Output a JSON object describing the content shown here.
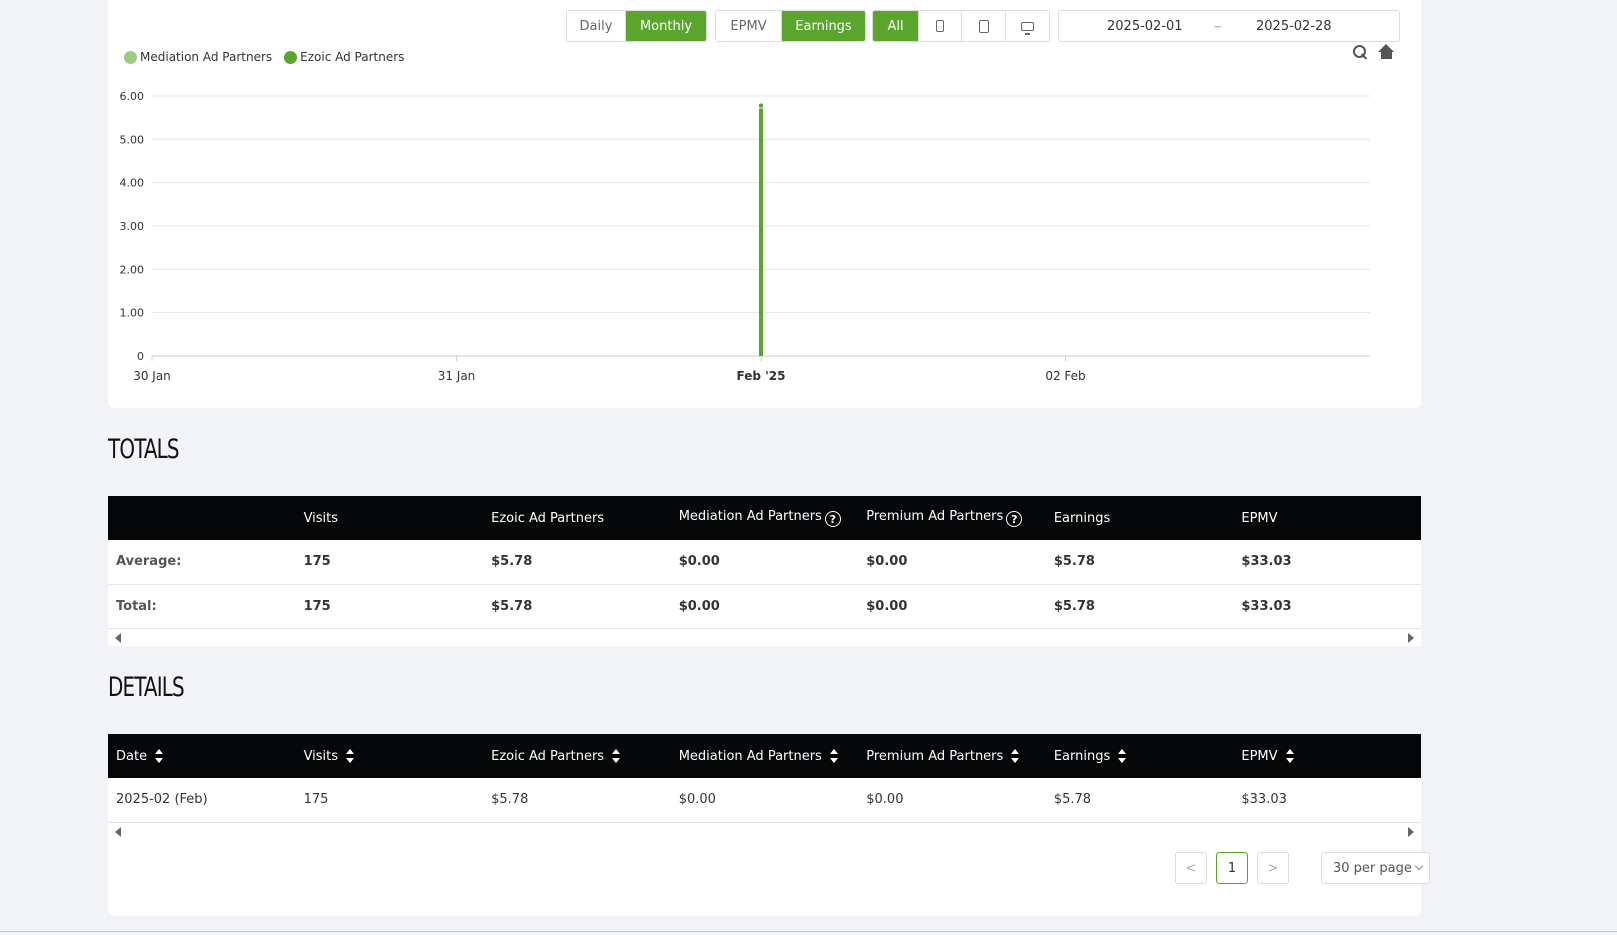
{
  "toolbar": {
    "period": {
      "daily": "Daily",
      "monthly": "Monthly",
      "active": "monthly"
    },
    "metric": {
      "epmv": "EPMV",
      "earnings": "Earnings",
      "active": "earnings"
    },
    "device": {
      "all": "All",
      "active": "all",
      "icons": [
        "mobile-phone-icon",
        "tablet-icon",
        "desktop-icon"
      ]
    },
    "date_range": {
      "start": "2025-02-01",
      "separator": "~",
      "end": "2025-02-28"
    },
    "tools": [
      "zoom-icon",
      "home-icon"
    ]
  },
  "legend": [
    {
      "label": "Mediation Ad Partners",
      "color": "#9dcc80"
    },
    {
      "label": "Ezoic Ad Partners",
      "color": "#5aa52b"
    }
  ],
  "chart_data": {
    "type": "bar",
    "x_ticks": [
      "30 Jan",
      "31 Jan",
      "Feb '25",
      "02 Feb"
    ],
    "y_ticks": [
      "0",
      "1.00",
      "2.00",
      "3.00",
      "4.00",
      "5.00",
      "6.00"
    ],
    "ylim": [
      0,
      6
    ],
    "series": [
      {
        "name": "Mediation Ad Partners",
        "color": "#9dcc80",
        "points": [
          {
            "x": "Feb '25",
            "value": 0.0
          }
        ]
      },
      {
        "name": "Ezoic Ad Partners",
        "color": "#5aa52b",
        "points": [
          {
            "x": "Feb '25",
            "value": 5.78
          }
        ]
      }
    ],
    "grid": true,
    "legend_position": "top-left"
  },
  "totals": {
    "title": "TOTALS",
    "columns": [
      "",
      "Visits",
      "Ezoic Ad Partners",
      "Mediation Ad Partners",
      "Premium Ad Partners",
      "Earnings",
      "EPMV"
    ],
    "help_icon_text": "?",
    "rows": [
      [
        "Average:",
        "175",
        "$5.78",
        "$0.00",
        "$0.00",
        "$5.78",
        "$33.03"
      ],
      [
        "Total:",
        "175",
        "$5.78",
        "$0.00",
        "$0.00",
        "$5.78",
        "$33.03"
      ]
    ]
  },
  "details": {
    "title": "DETAILS",
    "columns": [
      "Date",
      "Visits",
      "Ezoic Ad Partners",
      "Mediation Ad Partners",
      "Premium Ad Partners",
      "Earnings",
      "EPMV"
    ],
    "rows": [
      [
        "2025-02 (Feb)",
        "175",
        "$5.78",
        "$0.00",
        "$0.00",
        "$5.78",
        "$33.03"
      ]
    ]
  },
  "pagination": {
    "prev": "<",
    "current_page": "1",
    "next": ">",
    "page_size": "30 per page"
  }
}
